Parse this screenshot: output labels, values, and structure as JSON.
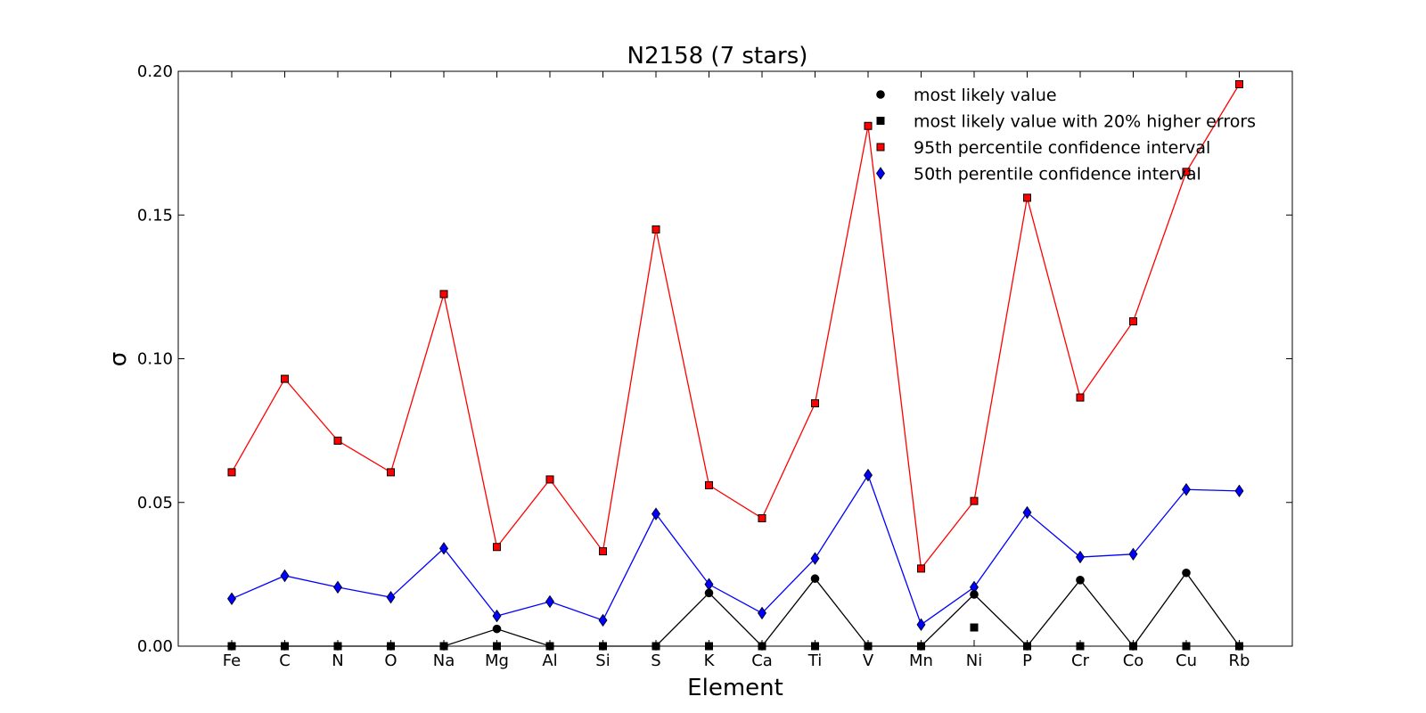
{
  "chart_data": {
    "type": "line",
    "title": "N2158 (7 stars)",
    "xlabel": "Element",
    "ylabel": "σ",
    "ylim": [
      0.0,
      0.2
    ],
    "yticks": [
      "0.00",
      "0.05",
      "0.10",
      "0.15",
      "0.20"
    ],
    "ytick_values": [
      0.0,
      0.05,
      0.1,
      0.15,
      0.2
    ],
    "categories": [
      "Fe",
      "C",
      "N",
      "O",
      "Na",
      "Mg",
      "Al",
      "Si",
      "S",
      "K",
      "Ca",
      "Ti",
      "V",
      "Mn",
      "Ni",
      "P",
      "Cr",
      "Co",
      "Cu",
      "Rb"
    ],
    "grid": false,
    "legend_position": "top-right",
    "series": [
      {
        "name": "most likely value",
        "marker": "circle",
        "color": "#000000",
        "values": [
          0,
          0,
          0,
          0,
          0,
          0.006,
          0,
          0,
          0,
          0.0185,
          0,
          0.0235,
          0,
          0,
          0.018,
          0,
          0.023,
          0,
          0.0255,
          0
        ]
      },
      {
        "name": "most likely value with 20% higher errors",
        "marker": "square",
        "color": "#000000",
        "values": [
          0,
          0,
          0,
          0,
          0,
          0,
          0,
          0,
          0,
          0,
          0,
          0,
          0,
          0,
          0.0065,
          0,
          0,
          0,
          0,
          0
        ]
      },
      {
        "name": "95th percentile confidence interval",
        "marker": "square",
        "color": "#ff0000",
        "values": [
          0.0605,
          0.093,
          0.0715,
          0.0605,
          0.1225,
          0.0345,
          0.058,
          0.033,
          0.145,
          0.056,
          0.0445,
          0.0845,
          0.181,
          0.027,
          0.0505,
          0.156,
          0.0865,
          0.113,
          0.165,
          0.1955
        ]
      },
      {
        "name": "50th perentile confidence interval",
        "marker": "diamond",
        "color": "#0000ff",
        "values": [
          0.0165,
          0.0245,
          0.0205,
          0.017,
          0.034,
          0.0105,
          0.0155,
          0.009,
          0.046,
          0.0215,
          0.0115,
          0.0305,
          0.0595,
          0.0075,
          0.0205,
          0.0465,
          0.031,
          0.032,
          0.0545,
          0.054
        ]
      }
    ]
  }
}
